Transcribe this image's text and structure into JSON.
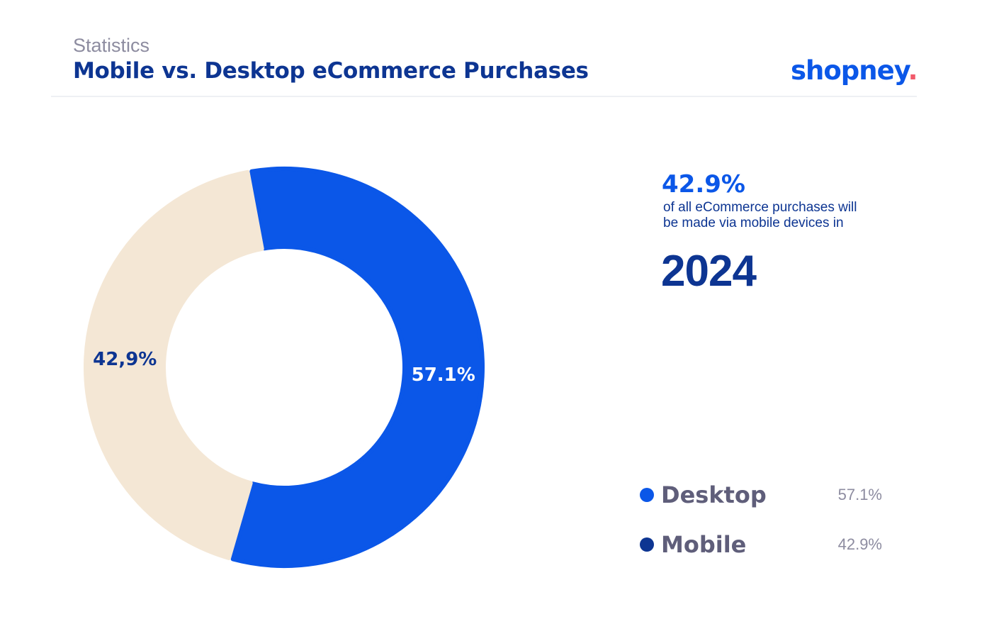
{
  "header": {
    "eyebrow": "Statistics",
    "title": "Mobile vs. Desktop eCommerce Purchases",
    "brand": "shopney",
    "brand_dot": "."
  },
  "callout": {
    "value": "42.9%",
    "text": "of all eCommerce purchases will be made via mobile devices in",
    "year": "2024"
  },
  "legend": [
    {
      "label": "Desktop",
      "value": "57.1%"
    },
    {
      "label": "Mobile",
      "value": "42.9%"
    }
  ],
  "colors": {
    "desktop": "#0b57e8",
    "mobile_slice": "#f4e7d5",
    "mobile_legend": "#0d3592",
    "brand_dot": "#f25a6b"
  },
  "chart_data": {
    "type": "pie",
    "donut": true,
    "categories": [
      "Desktop",
      "Mobile"
    ],
    "values": [
      57.1,
      42.9
    ],
    "labels": [
      "57.1%",
      "42,9%"
    ],
    "colors": [
      "#0b57e8",
      "#f4e7d5"
    ],
    "label_colors": [
      "#ffffff",
      "#0d3592"
    ]
  }
}
